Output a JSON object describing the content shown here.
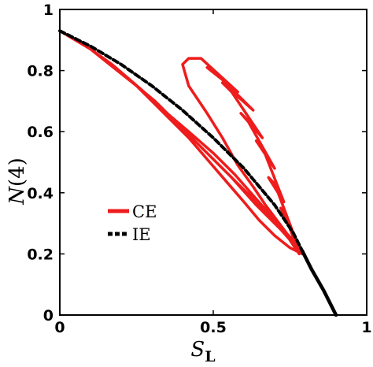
{
  "chart_data": {
    "type": "line",
    "title": "",
    "xlabel": "S_L",
    "ylabel": "N(4)",
    "xlabel_main": "S",
    "xlabel_sub": "L",
    "ylabel_main": "N",
    "ylabel_arg": "(4)",
    "xlim": [
      0,
      1
    ],
    "ylim": [
      0,
      1
    ],
    "x_ticks": [
      0,
      0.5,
      1
    ],
    "x_tick_labels": [
      "0",
      "0.5",
      "1"
    ],
    "y_ticks": [
      0,
      0.2,
      0.4,
      0.6,
      0.8,
      1
    ],
    "y_tick_labels": [
      "0",
      "0.2",
      "0.4",
      "0.6",
      "0.8",
      "1"
    ],
    "grid": false,
    "legend_position": "middle-left",
    "series": [
      {
        "name": "CE",
        "color": "#ee1c1c",
        "style": "solid",
        "x": [
          0.0,
          0.1,
          0.2,
          0.25,
          0.31,
          0.37,
          0.41,
          0.45,
          0.5,
          0.55,
          0.58,
          0.61,
          0.64,
          0.67,
          0.7,
          0.74,
          0.78,
          0.74,
          0.72,
          0.76,
          0.7,
          0.68,
          0.73,
          0.66,
          0.64,
          0.7,
          0.61,
          0.59,
          0.66,
          0.56,
          0.53,
          0.63,
          0.52,
          0.48,
          0.58,
          0.46,
          0.42,
          0.4,
          0.42,
          0.48,
          0.53,
          0.58,
          0.63,
          0.67,
          0.7,
          0.73,
          0.76,
          0.78,
          0.79,
          0.71,
          0.64,
          0.57,
          0.5,
          0.42,
          0.35,
          0.3,
          0.24,
          0.3,
          0.36,
          0.42,
          0.48,
          0.54,
          0.6,
          0.65,
          0.7,
          0.75,
          0.79,
          0.72,
          0.64,
          0.56,
          0.48,
          0.4,
          0.32,
          0.24,
          0.17,
          0.1,
          0.0
        ],
        "y": [
          0.93,
          0.87,
          0.79,
          0.75,
          0.7,
          0.64,
          0.6,
          0.56,
          0.51,
          0.46,
          0.43,
          0.4,
          0.37,
          0.34,
          0.31,
          0.26,
          0.2,
          0.31,
          0.35,
          0.27,
          0.43,
          0.45,
          0.37,
          0.55,
          0.57,
          0.48,
          0.64,
          0.66,
          0.58,
          0.73,
          0.76,
          0.67,
          0.78,
          0.81,
          0.73,
          0.84,
          0.84,
          0.82,
          0.75,
          0.66,
          0.58,
          0.49,
          0.42,
          0.36,
          0.32,
          0.28,
          0.24,
          0.21,
          0.21,
          0.3,
          0.38,
          0.46,
          0.53,
          0.6,
          0.66,
          0.7,
          0.76,
          0.7,
          0.64,
          0.58,
          0.51,
          0.44,
          0.37,
          0.31,
          0.26,
          0.22,
          0.2,
          0.28,
          0.36,
          0.45,
          0.53,
          0.61,
          0.69,
          0.76,
          0.82,
          0.87,
          0.93
        ]
      },
      {
        "name": "IE",
        "color": "#000000",
        "style": "dashed",
        "x": [
          0.0,
          0.1,
          0.2,
          0.3,
          0.4,
          0.5,
          0.6,
          0.7,
          0.76,
          0.79
        ],
        "y": [
          0.93,
          0.88,
          0.82,
          0.75,
          0.67,
          0.58,
          0.48,
          0.36,
          0.27,
          0.21
        ]
      },
      {
        "name": "",
        "color": "#000000",
        "style": "solid",
        "x": [
          0.79,
          0.82,
          0.86,
          0.9
        ],
        "y": [
          0.21,
          0.15,
          0.08,
          0.0
        ]
      }
    ]
  }
}
